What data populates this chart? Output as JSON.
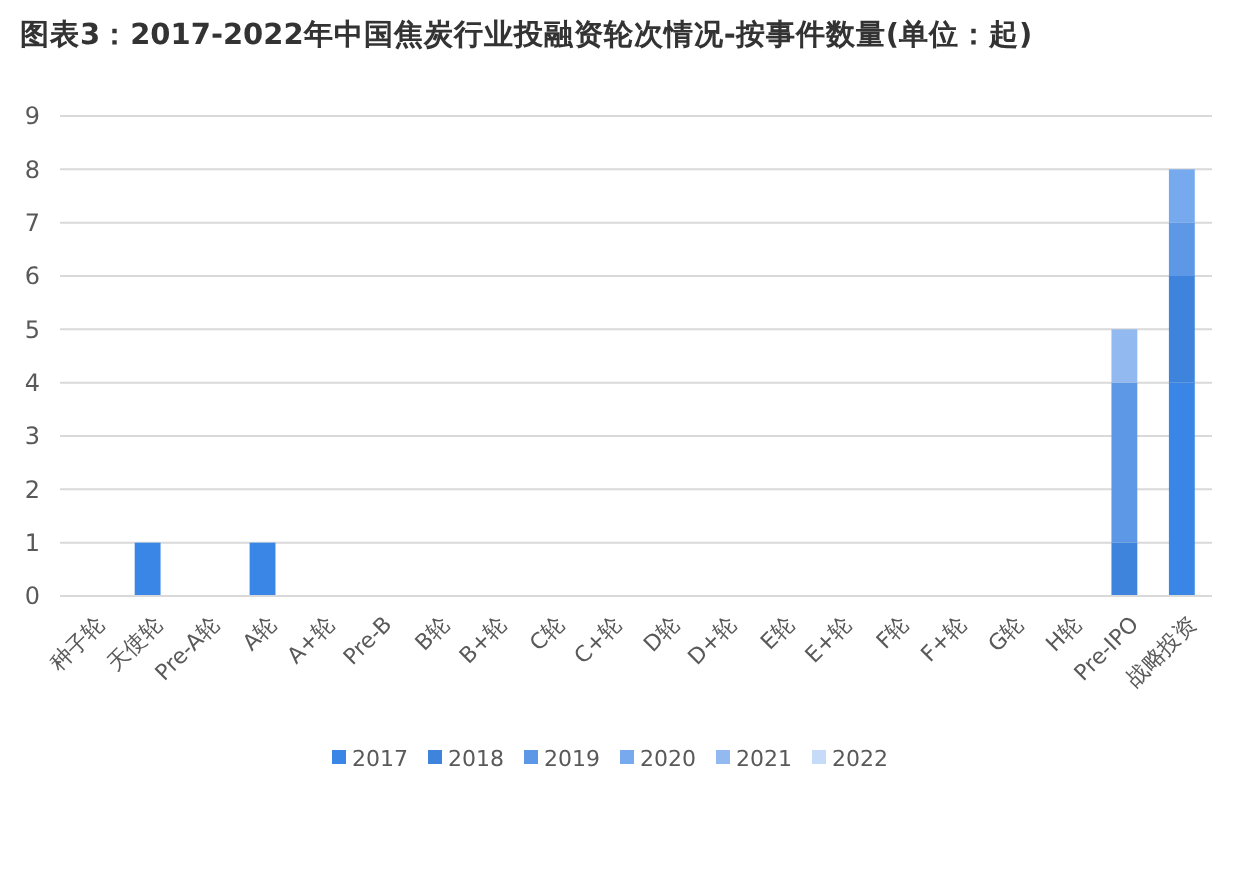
{
  "chart_data": {
    "type": "bar",
    "stacked": true,
    "title": "图表3：2017-2022年中国焦炭行业投融资轮次情况-按事件数量(单位：起)",
    "categories": [
      "种子轮",
      "天使轮",
      "Pre-A轮",
      "A轮",
      "A+轮",
      "Pre-B",
      "B轮",
      "B+轮",
      "C轮",
      "C+轮",
      "D轮",
      "D+轮",
      "E轮",
      "E+轮",
      "F轮",
      "F+轮",
      "G轮",
      "H轮",
      "Pre-IPO",
      "战略投资"
    ],
    "series": [
      {
        "name": "2017",
        "color": "#3a86e6",
        "values": [
          0,
          1,
          0,
          1,
          0,
          0,
          0,
          0,
          0,
          0,
          0,
          0,
          0,
          0,
          0,
          0,
          0,
          0,
          0,
          4
        ]
      },
      {
        "name": "2018",
        "color": "#3f84dc",
        "values": [
          0,
          0,
          0,
          0,
          0,
          0,
          0,
          0,
          0,
          0,
          0,
          0,
          0,
          0,
          0,
          0,
          0,
          0,
          1,
          2
        ]
      },
      {
        "name": "2019",
        "color": "#5c98e6",
        "values": [
          0,
          0,
          0,
          0,
          0,
          0,
          0,
          0,
          0,
          0,
          0,
          0,
          0,
          0,
          0,
          0,
          0,
          0,
          3,
          1
        ]
      },
      {
        "name": "2020",
        "color": "#76a9ee",
        "values": [
          0,
          0,
          0,
          0,
          0,
          0,
          0,
          0,
          0,
          0,
          0,
          0,
          0,
          0,
          0,
          0,
          0,
          0,
          0,
          1
        ]
      },
      {
        "name": "2021",
        "color": "#92b9f0",
        "values": [
          0,
          0,
          0,
          0,
          0,
          0,
          0,
          0,
          0,
          0,
          0,
          0,
          0,
          0,
          0,
          0,
          0,
          0,
          1,
          0
        ]
      },
      {
        "name": "2022",
        "color": "#c6dbf7",
        "values": [
          0,
          0,
          0,
          0,
          0,
          0,
          0,
          0,
          0,
          0,
          0,
          0,
          0,
          0,
          0,
          0,
          0,
          0,
          0,
          0
        ]
      }
    ],
    "ylim": [
      0,
      9
    ],
    "yticks": [
      0,
      1,
      2,
      3,
      4,
      5,
      6,
      7,
      8,
      9
    ],
    "grid": "y",
    "legend": "bottom"
  }
}
